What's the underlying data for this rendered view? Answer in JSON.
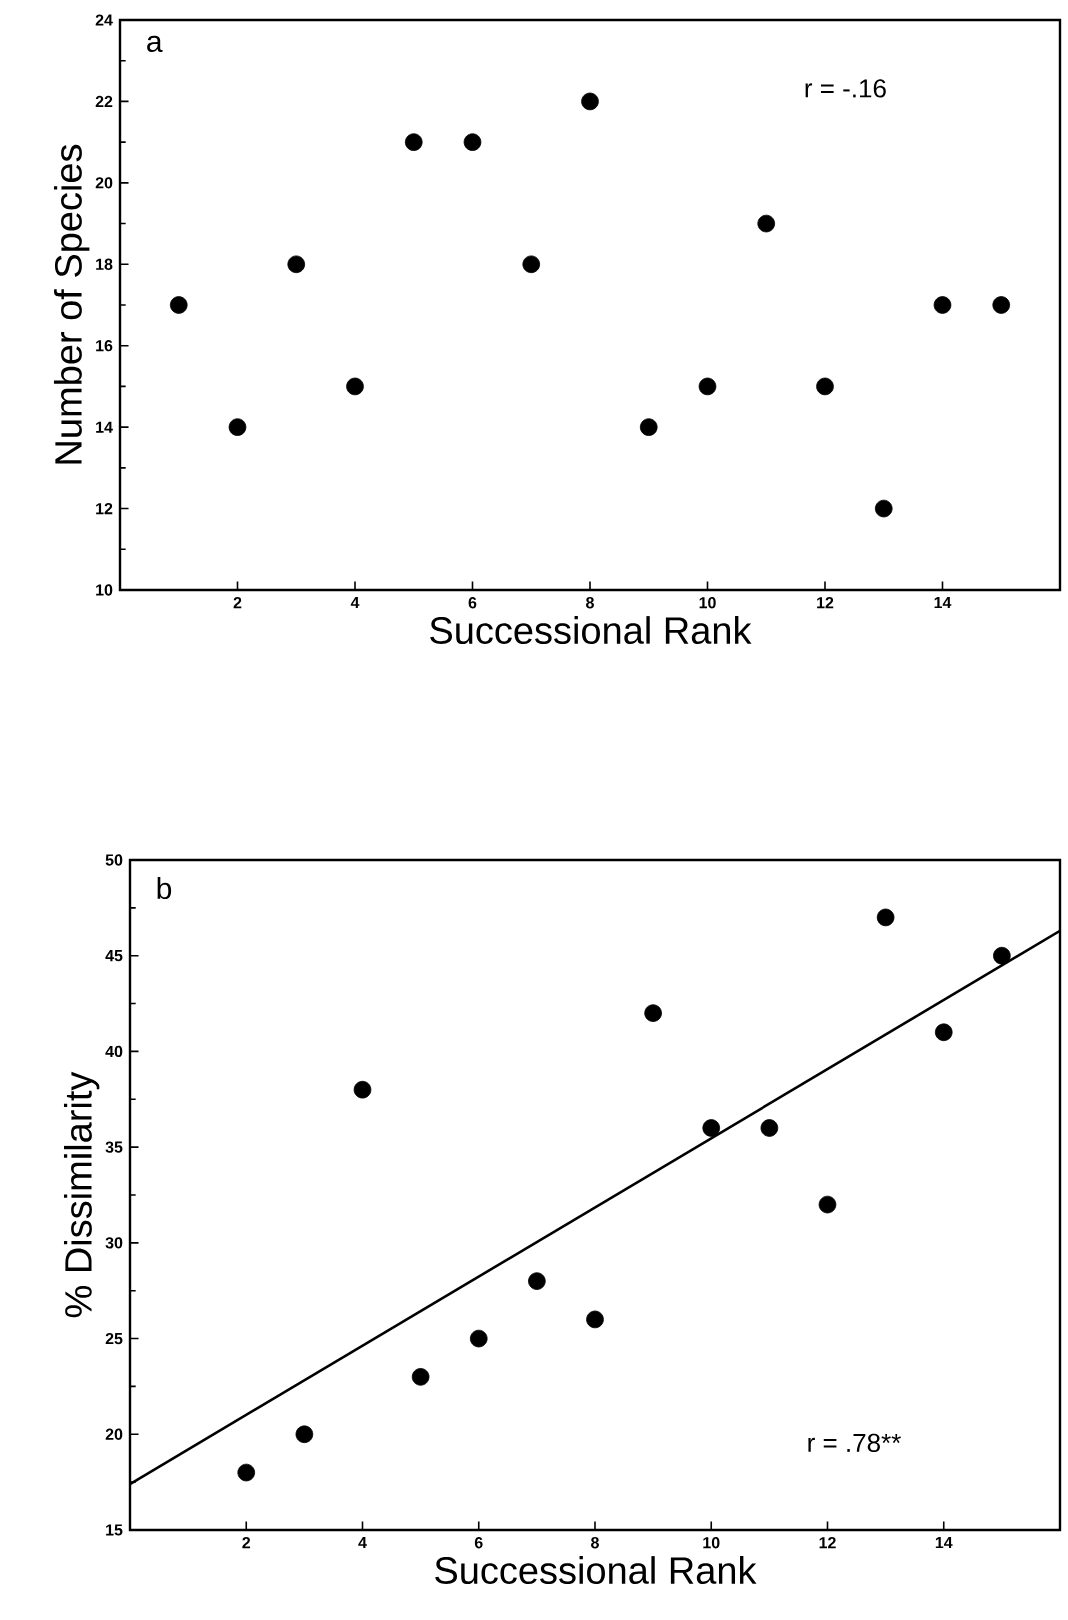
{
  "chart_data": [
    {
      "type": "scatter",
      "xlabel": "Successional Rank",
      "ylabel": "Number of Species",
      "marker": "circle",
      "x": [
        1,
        2,
        3,
        4,
        5,
        6,
        7,
        8,
        9,
        10,
        11,
        12,
        13,
        14,
        15
      ],
      "series": [
        {
          "color": "#000000",
          "values": [
            17,
            14,
            18,
            15,
            21,
            21,
            18,
            22,
            14,
            15,
            19,
            15,
            12,
            17,
            17
          ]
        }
      ],
      "xlim": [
        0,
        16
      ],
      "xticks": [
        2,
        4,
        6,
        8,
        10,
        12,
        14
      ],
      "ylim": [
        10,
        24
      ],
      "yticks": [
        10,
        12,
        14,
        16,
        18,
        20,
        22,
        24
      ],
      "annotations": [
        "a",
        "r = -.16"
      ]
    },
    {
      "type": "scatter",
      "xlabel": "Successional Rank",
      "ylabel": "% Dissimilarity",
      "marker": "circle",
      "x": [
        2,
        3,
        4,
        5,
        6,
        7,
        8,
        9,
        10,
        11,
        12,
        13,
        14,
        15
      ],
      "series": [
        {
          "color": "#000000",
          "values": [
            18,
            20,
            38,
            23,
            25,
            28,
            26,
            42,
            36,
            36,
            32,
            47,
            41,
            45
          ]
        },
        {
          "type": "line",
          "color": "#000000",
          "x": [
            0,
            16
          ],
          "values": [
            17.4,
            46.3
          ],
          "line_style": "solid",
          "marker": "none"
        }
      ],
      "xlim": [
        0,
        16
      ],
      "xticks": [
        2,
        4,
        6,
        8,
        10,
        12,
        14
      ],
      "ylim": [
        15,
        50
      ],
      "yticks": [
        15,
        20,
        25,
        30,
        35,
        40,
        45,
        50
      ],
      "annotations": [
        "b",
        "r = .78**"
      ]
    }
  ]
}
